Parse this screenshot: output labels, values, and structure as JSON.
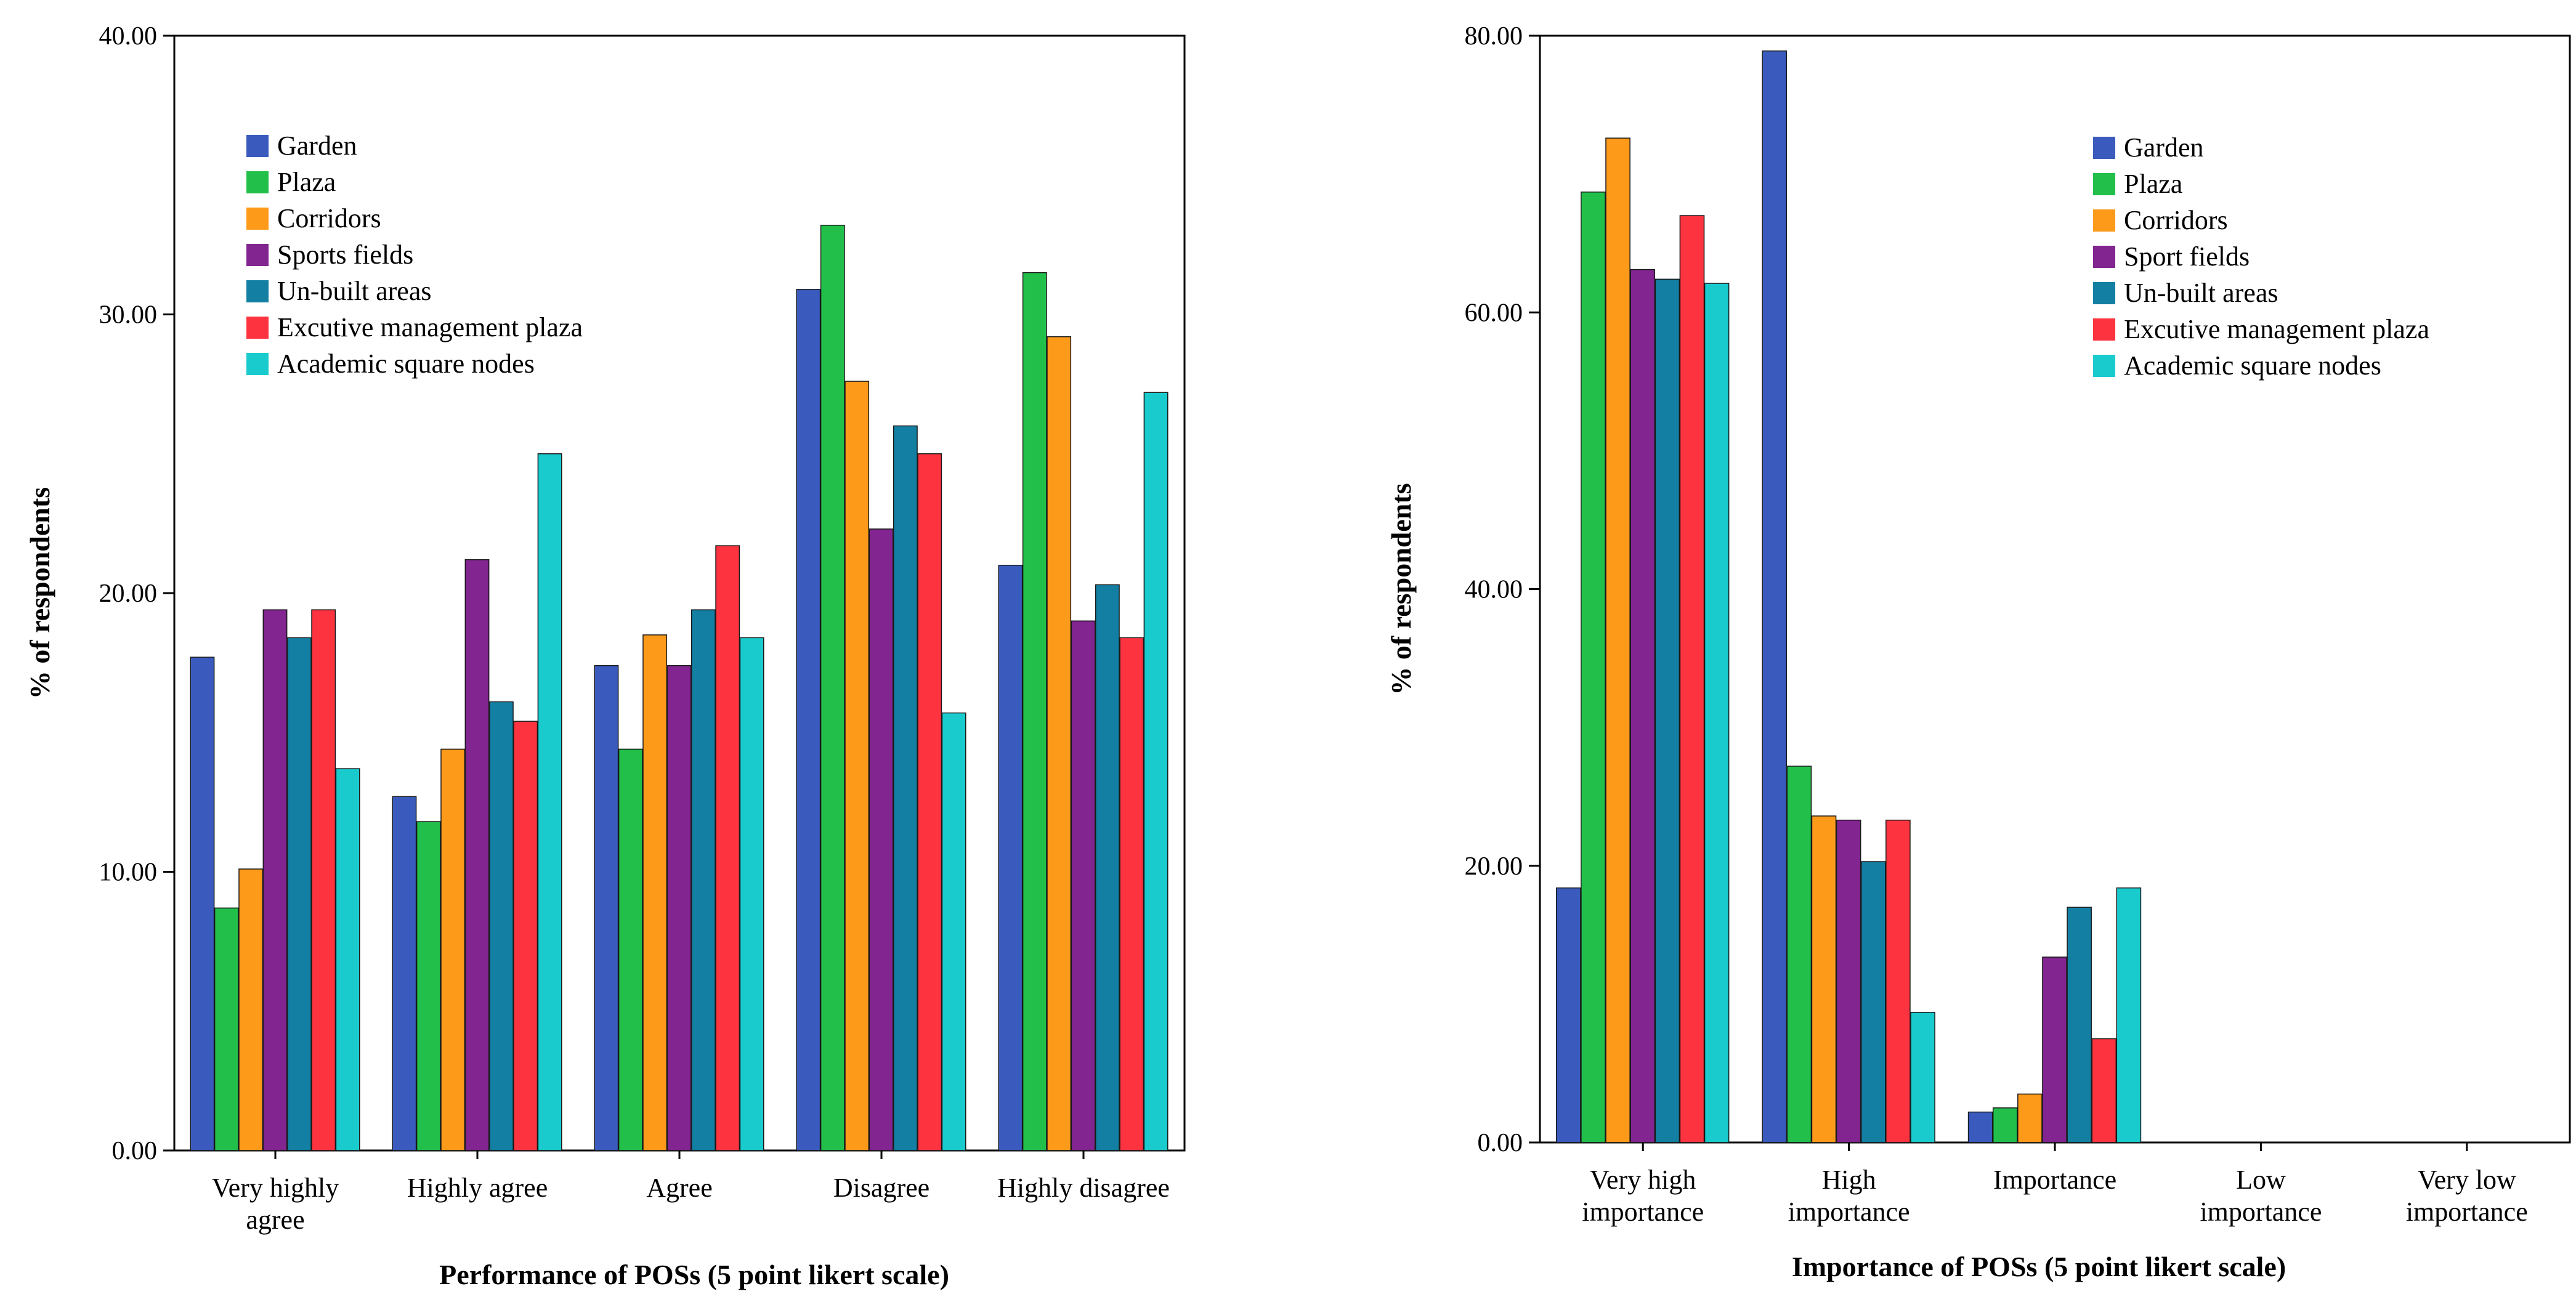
{
  "colors": {
    "Garden": "#3a5bbd",
    "Plaza": "#22c04a",
    "Corridors": "#fe9a1a",
    "Sports fields": "#822590",
    "Un-built areas": "#137fa3",
    "Excutive management plaza": "#fd3440",
    "Academic square nodes": "#19cbcd"
  },
  "chart_data": [
    {
      "type": "bar",
      "title": "",
      "xlabel": "Performance of POSs (5 point likert scale)",
      "ylabel": "% of respondents",
      "ylim": [
        0,
        40
      ],
      "yticks": [
        "0.00",
        "10.00",
        "20.00",
        "30.00",
        "40.00"
      ],
      "grid": false,
      "legend_position": "top-left",
      "categories": [
        [
          "Very highly",
          "agree"
        ],
        [
          "Highly agree"
        ],
        [
          "Agree"
        ],
        [
          "Disagree"
        ],
        [
          "Highly disagree"
        ]
      ],
      "series": [
        {
          "name": "Garden",
          "color_key": "Garden",
          "values": [
            17.7,
            12.7,
            17.4,
            30.9,
            21.0
          ]
        },
        {
          "name": "Plaza",
          "color_key": "Plaza",
          "values": [
            8.7,
            11.8,
            14.4,
            33.2,
            31.5
          ]
        },
        {
          "name": "Corridors",
          "color_key": "Corridors",
          "values": [
            10.1,
            14.4,
            18.5,
            27.6,
            29.2
          ]
        },
        {
          "name": "Sports fields",
          "color_key": "Sports fields",
          "values": [
            19.4,
            21.2,
            17.4,
            22.3,
            19.0
          ]
        },
        {
          "name": "Un-built areas",
          "color_key": "Un-built areas",
          "values": [
            18.4,
            16.1,
            19.4,
            26.0,
            20.3
          ]
        },
        {
          "name": "Excutive management plaza",
          "color_key": "Excutive management plaza",
          "values": [
            19.4,
            15.4,
            21.7,
            25.0,
            18.4
          ]
        },
        {
          "name": "Academic square nodes",
          "color_key": "Academic square nodes",
          "values": [
            13.7,
            25.0,
            18.4,
            15.7,
            27.2
          ]
        }
      ]
    },
    {
      "type": "bar",
      "title": "",
      "xlabel": "Importance of POSs (5 point likert scale)",
      "ylabel": "% of respondents",
      "ylim": [
        0,
        80
      ],
      "yticks": [
        "0.00",
        "20.00",
        "40.00",
        "60.00",
        "80.00"
      ],
      "grid": false,
      "legend_position": "top-right",
      "categories": [
        [
          "Very high",
          "importance"
        ],
        [
          "High",
          "importance"
        ],
        [
          "Importance"
        ],
        [
          "Low",
          "importance"
        ],
        [
          "Very low",
          "importance"
        ]
      ],
      "series": [
        {
          "name": "Garden",
          "color_key": "Garden",
          "values": [
            18.4,
            78.9,
            2.2,
            0,
            0
          ]
        },
        {
          "name": "Plaza",
          "color_key": "Plaza",
          "values": [
            68.7,
            27.2,
            2.5,
            0,
            0
          ]
        },
        {
          "name": "Corridors",
          "color_key": "Corridors",
          "values": [
            72.6,
            23.6,
            3.5,
            0,
            0
          ]
        },
        {
          "name": "Sport fields",
          "color_key": "Sports fields",
          "values": [
            63.1,
            23.3,
            13.4,
            0,
            0
          ]
        },
        {
          "name": "Un-built areas",
          "color_key": "Un-built areas",
          "values": [
            62.4,
            20.3,
            17.0,
            0,
            0
          ]
        },
        {
          "name": "Excutive management plaza",
          "color_key": "Excutive management plaza",
          "values": [
            67.0,
            23.3,
            7.5,
            0,
            0
          ]
        },
        {
          "name": "Academic square  nodes",
          "color_key": "Academic square nodes",
          "values": [
            62.1,
            9.4,
            18.4,
            0,
            0
          ]
        }
      ]
    }
  ]
}
